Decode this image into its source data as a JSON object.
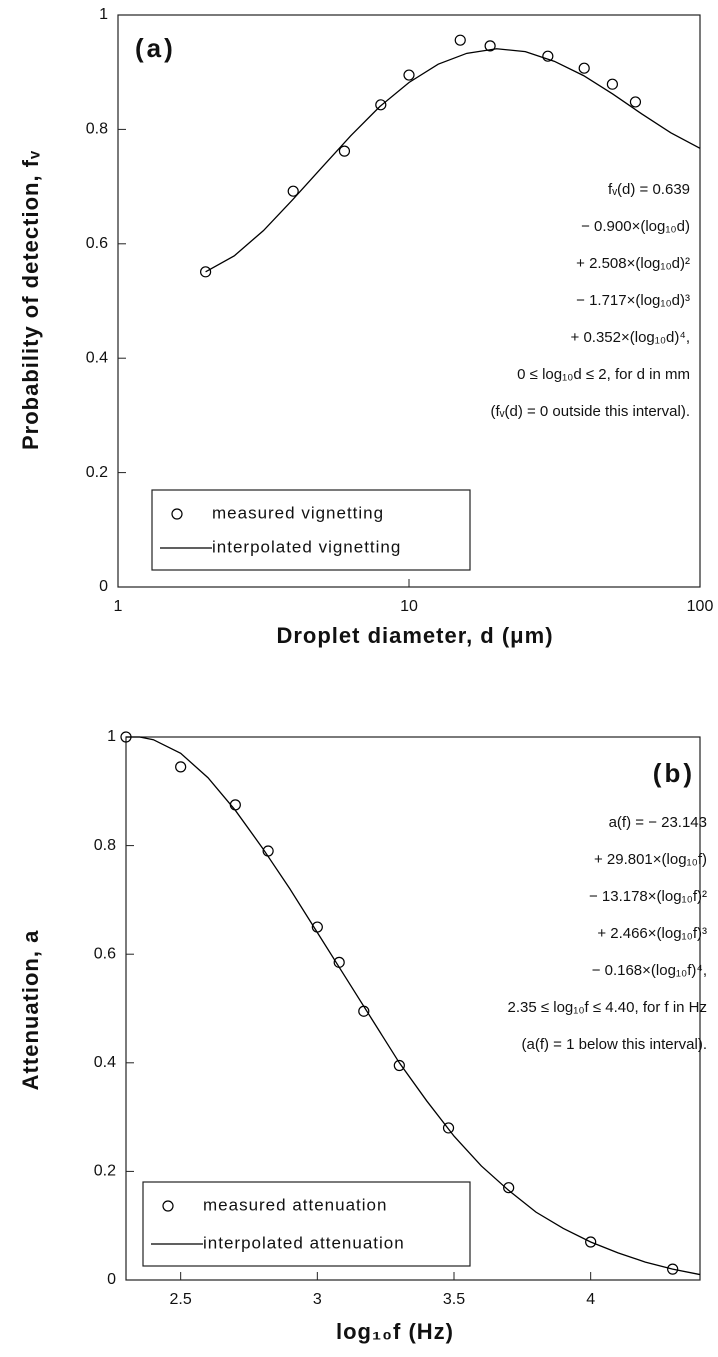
{
  "chart_data": [
    {
      "type": "line",
      "title": "(a)",
      "xlabel": "Droplet diameter, d (μm)",
      "ylabel": "Probability of detection, fᵥ",
      "xscale": "log",
      "xlim": [
        1,
        100
      ],
      "ylim": [
        0,
        1
      ],
      "xticks": [
        1,
        10,
        100
      ],
      "yticks": [
        0,
        0.2,
        0.4,
        0.6,
        0.8,
        1
      ],
      "grid": false,
      "legend": "lower left",
      "series": [
        {
          "name": "measured vignetting",
          "style": "markers",
          "color": "#000000",
          "x": [
            2,
            4,
            6,
            8,
            10,
            15,
            19,
            30,
            40,
            50,
            60
          ],
          "values": [
            0.551,
            0.692,
            0.762,
            0.843,
            0.895,
            0.956,
            0.946,
            0.928,
            0.907,
            0.879,
            0.848
          ]
        },
        {
          "name": "interpolated vignetting",
          "style": "line",
          "color": "#000000",
          "x": [
            2,
            2.51,
            3.16,
            3.98,
            5.01,
            6.31,
            7.94,
            10,
            12.6,
            15.8,
            20,
            25.1,
            31.6,
            39.8,
            50.1,
            63.1,
            79.4,
            100
          ],
          "values": [
            0.551,
            0.579,
            0.623,
            0.677,
            0.733,
            0.789,
            0.84,
            0.882,
            0.914,
            0.933,
            0.941,
            0.936,
            0.919,
            0.894,
            0.862,
            0.827,
            0.794,
            0.767
          ]
        }
      ],
      "annotations": [
        "fᵥ(d) =  0.639",
        "− 0.900×(log₁₀d)",
        "+ 2.508×(log₁₀d)²",
        "− 1.717×(log₁₀d)³",
        "+ 0.352×(log₁₀d)⁴,",
        "0 ≤ log₁₀d ≤ 2, for d in mm",
        "(fᵥ(d) =  0 outside this interval)."
      ]
    },
    {
      "type": "line",
      "title": "(b)",
      "xlabel": "log₁₀f  (Hz)",
      "ylabel": "Attenuation, a",
      "xscale": "linear",
      "xlim": [
        2.3,
        4.4
      ],
      "ylim": [
        0,
        1
      ],
      "xticks": [
        2.5,
        3,
        3.5,
        4
      ],
      "yticks": [
        0,
        0.2,
        0.4,
        0.6,
        0.8,
        1
      ],
      "grid": false,
      "legend": "lower left",
      "series": [
        {
          "name": "measured attenuation",
          "style": "markers",
          "color": "#000000",
          "x": [
            2.3,
            2.5,
            2.7,
            2.82,
            3.0,
            3.08,
            3.17,
            3.3,
            3.48,
            3.7,
            4.0,
            4.3
          ],
          "values": [
            1.0,
            0.945,
            0.875,
            0.79,
            0.65,
            0.585,
            0.495,
            0.395,
            0.28,
            0.17,
            0.07,
            0.02
          ]
        },
        {
          "name": "interpolated attenuation",
          "style": "line",
          "color": "#000000",
          "x": [
            2.3,
            2.35,
            2.4,
            2.5,
            2.6,
            2.7,
            2.8,
            2.9,
            3.0,
            3.1,
            3.2,
            3.3,
            3.4,
            3.5,
            3.6,
            3.7,
            3.8,
            3.9,
            4.0,
            4.1,
            4.2,
            4.3,
            4.4
          ],
          "values": [
            1.0,
            1.0,
            0.995,
            0.97,
            0.925,
            0.865,
            0.795,
            0.72,
            0.64,
            0.56,
            0.48,
            0.4,
            0.33,
            0.265,
            0.21,
            0.165,
            0.125,
            0.095,
            0.07,
            0.05,
            0.033,
            0.02,
            0.01
          ]
        }
      ],
      "annotations": [
        "a(f) = − 23.143",
        "+ 29.801×(log₁₀f)",
        "− 13.178×(log₁₀f)²",
        "+  2.466×(log₁₀f)³",
        "−  0.168×(log₁₀f)⁴,",
        "2.35 ≤ log₁₀f ≤ 4.40, for f in Hz",
        "(a(f) =  1 below this interval)."
      ]
    }
  ]
}
